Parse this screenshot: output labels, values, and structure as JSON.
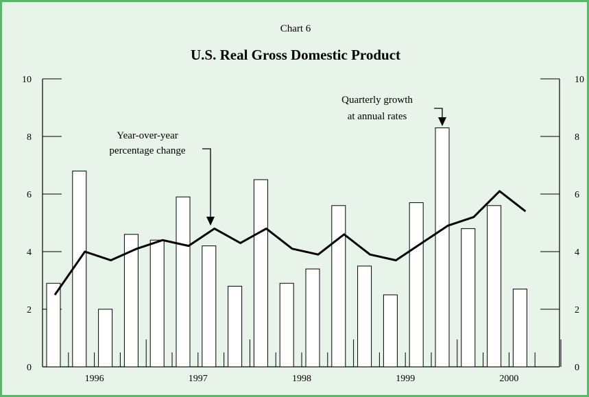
{
  "chart_data": {
    "type": "bar",
    "supertitle": "Chart 6",
    "title": "U.S. Real Gross Domestic Product",
    "ylim": [
      0,
      10
    ],
    "y_ticks": [
      "0",
      "2",
      "4",
      "6",
      "8",
      "10"
    ],
    "x_year_labels": [
      "1996",
      "1997",
      "1998",
      "1999",
      "2000"
    ],
    "quarters": [
      "1996Q1",
      "1996Q2",
      "1996Q3",
      "1996Q4",
      "1997Q1",
      "1997Q2",
      "1997Q3",
      "1997Q4",
      "1998Q1",
      "1998Q2",
      "1998Q3",
      "1998Q4",
      "1999Q1",
      "1999Q2",
      "1999Q3",
      "1999Q4",
      "2000Q1",
      "2000Q2",
      "2000Q3"
    ],
    "series": [
      {
        "name": "Quarterly growth at annual rates",
        "type": "bar",
        "values": [
          2.9,
          6.8,
          2.0,
          4.6,
          4.4,
          5.9,
          4.2,
          2.8,
          6.5,
          2.9,
          3.4,
          5.6,
          3.5,
          2.5,
          5.7,
          8.3,
          4.8,
          5.6,
          2.7
        ]
      },
      {
        "name": "Year-over-year percentage change",
        "type": "line",
        "values": [
          2.5,
          4.0,
          3.7,
          4.1,
          4.4,
          4.2,
          4.8,
          4.3,
          4.8,
          4.1,
          3.9,
          4.6,
          3.9,
          3.7,
          4.3,
          4.9,
          5.2,
          6.1,
          5.4
        ]
      }
    ],
    "annotations": {
      "line_label": [
        "Year-over-year",
        "percentage change"
      ],
      "bar_label": [
        "Quarterly growth",
        "at annual rates"
      ]
    },
    "colors": {
      "background": "#e8f4ea",
      "border": "#5bb56b",
      "bar_fill": "#ffffff",
      "ink": "#000000"
    },
    "grid": false
  }
}
